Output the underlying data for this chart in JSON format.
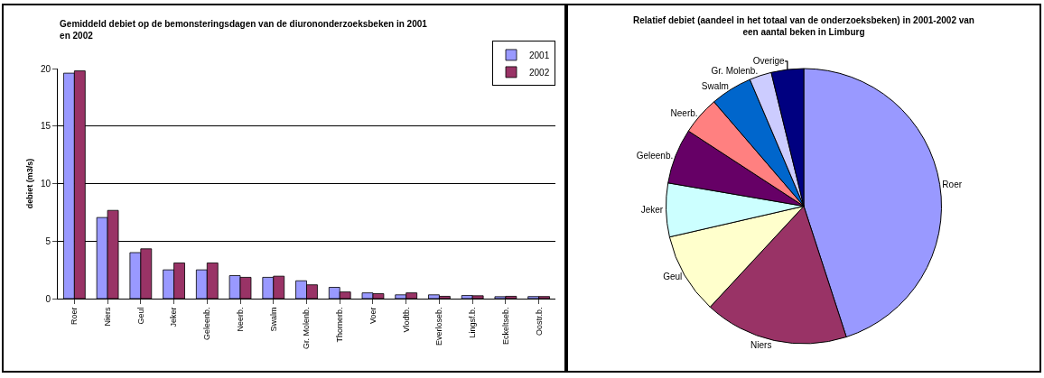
{
  "chart_data": [
    {
      "type": "bar",
      "title": "Gemiddeld debiet op de bemonsteringsdagen van de diurononderzoeksbeken in 2001 en 2002",
      "ylabel": "debiet (m3/s)",
      "categories": [
        "Roer",
        "Niers",
        "Geul",
        "Jeker",
        "Geleenb.",
        "Neerb.",
        "Swalm",
        "Gr. Molenb.",
        "Thornerb.",
        "Voer",
        "Vlodtb.",
        "Everloseb.",
        "Lingsf.b.",
        "Eckeltseb.",
        "Oostr.b."
      ],
      "series": [
        {
          "name": "2001",
          "color": "#9999ff",
          "values": [
            19.6,
            7.05,
            4.0,
            2.5,
            2.5,
            2.0,
            1.85,
            1.55,
            0.98,
            0.5,
            0.33,
            0.33,
            0.27,
            0.17,
            0.18
          ]
        },
        {
          "name": "2002",
          "color": "#993366",
          "values": [
            19.8,
            7.67,
            4.33,
            3.1,
            3.1,
            1.85,
            1.95,
            1.2,
            0.58,
            0.43,
            0.5,
            0.2,
            0.25,
            0.2,
            0.18
          ]
        }
      ],
      "ylim": [
        0,
        20
      ],
      "yticks": [
        0,
        5,
        10,
        15,
        20
      ],
      "grid": "y",
      "legend": "top right"
    },
    {
      "type": "pie",
      "title": "Relatief debiet (aandeel in het totaal van de onderzoeksbeken) in 2001-2002 van een aantal beken in Limburg",
      "categories": [
        "Roer",
        "Niers",
        "Geul",
        "Jeker",
        "Geleenb.",
        "Neerb.",
        "Swalm",
        "Gr. Molenb.",
        "Overige"
      ],
      "values": [
        45,
        16.9,
        9.5,
        6.3,
        6.5,
        4.5,
        4.9,
        2.6,
        3.8
      ],
      "colors": [
        "#9999ff",
        "#993366",
        "#ffffcc",
        "#ccffff",
        "#660066",
        "#ff8080",
        "#0066cc",
        "#ccccff",
        "#000080"
      ],
      "legend": false
    }
  ]
}
